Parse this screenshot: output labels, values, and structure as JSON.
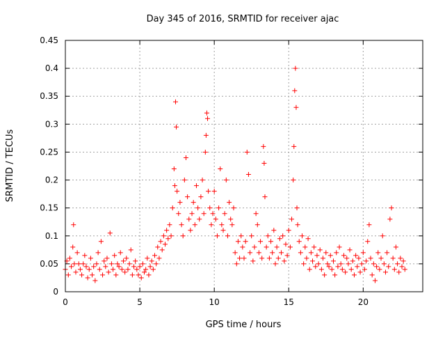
{
  "chart_data": {
    "type": "scatter",
    "title": "Day 345 of 2016, SRMTID for receiver ajac",
    "xlabel": "GPS time / hours",
    "ylabel": "SRMTID / TECUs",
    "xlim": [
      0,
      24
    ],
    "ylim": [
      0,
      0.45
    ],
    "xticks": [
      0,
      5,
      10,
      15,
      20
    ],
    "xtick_labels": [
      "0",
      "5",
      "10",
      "15",
      "20"
    ],
    "yticks": [
      0,
      0.05,
      0.1,
      0.15,
      0.2,
      0.25,
      0.3,
      0.35,
      0.4,
      0.45
    ],
    "ytick_labels": [
      "0",
      "0.05",
      "0.1",
      "0.15",
      "0.2",
      "0.25",
      "0.3",
      "0.35",
      "0.4",
      "0.45"
    ],
    "grid": true,
    "marker": "+",
    "color": "#ff0000",
    "series": [
      {
        "name": "SRMTID",
        "points": [
          [
            0.0,
            0.04
          ],
          [
            0.1,
            0.055
          ],
          [
            0.2,
            0.03
          ],
          [
            0.3,
            0.06
          ],
          [
            0.4,
            0.045
          ],
          [
            0.5,
            0.08
          ],
          [
            0.55,
            0.12
          ],
          [
            0.6,
            0.05
          ],
          [
            0.7,
            0.035
          ],
          [
            0.8,
            0.07
          ],
          [
            0.9,
            0.05
          ],
          [
            1.0,
            0.04
          ],
          [
            1.1,
            0.03
          ],
          [
            1.2,
            0.05
          ],
          [
            1.3,
            0.065
          ],
          [
            1.4,
            0.045
          ],
          [
            1.5,
            0.025
          ],
          [
            1.6,
            0.04
          ],
          [
            1.7,
            0.06
          ],
          [
            1.8,
            0.03
          ],
          [
            1.9,
            0.045
          ],
          [
            2.0,
            0.02
          ],
          [
            2.1,
            0.05
          ],
          [
            2.2,
            0.07
          ],
          [
            2.3,
            0.04
          ],
          [
            2.4,
            0.09
          ],
          [
            2.5,
            0.03
          ],
          [
            2.6,
            0.055
          ],
          [
            2.7,
            0.045
          ],
          [
            2.8,
            0.06
          ],
          [
            2.9,
            0.035
          ],
          [
            3.0,
            0.105
          ],
          [
            3.1,
            0.05
          ],
          [
            3.2,
            0.04
          ],
          [
            3.3,
            0.065
          ],
          [
            3.4,
            0.03
          ],
          [
            3.5,
            0.05
          ],
          [
            3.6,
            0.045
          ],
          [
            3.7,
            0.07
          ],
          [
            3.8,
            0.04
          ],
          [
            3.9,
            0.055
          ],
          [
            4.0,
            0.035
          ],
          [
            4.1,
            0.06
          ],
          [
            4.2,
            0.04
          ],
          [
            4.3,
            0.05
          ],
          [
            4.4,
            0.075
          ],
          [
            4.5,
            0.03
          ],
          [
            4.6,
            0.045
          ],
          [
            4.7,
            0.055
          ],
          [
            4.8,
            0.04
          ],
          [
            4.9,
            0.03
          ],
          [
            5.0,
            0.045
          ],
          [
            5.1,
            0.025
          ],
          [
            5.2,
            0.05
          ],
          [
            5.3,
            0.035
          ],
          [
            5.4,
            0.04
          ],
          [
            5.5,
            0.06
          ],
          [
            5.6,
            0.03
          ],
          [
            5.7,
            0.045
          ],
          [
            5.8,
            0.055
          ],
          [
            5.9,
            0.04
          ],
          [
            6.0,
            0.065
          ],
          [
            6.1,
            0.05
          ],
          [
            6.2,
            0.08
          ],
          [
            6.3,
            0.06
          ],
          [
            6.4,
            0.09
          ],
          [
            6.5,
            0.075
          ],
          [
            6.6,
            0.1
          ],
          [
            6.7,
            0.085
          ],
          [
            6.8,
            0.11
          ],
          [
            6.9,
            0.095
          ],
          [
            7.0,
            0.12
          ],
          [
            7.1,
            0.1
          ],
          [
            7.2,
            0.15
          ],
          [
            7.3,
            0.22
          ],
          [
            7.35,
            0.19
          ],
          [
            7.4,
            0.34
          ],
          [
            7.45,
            0.295
          ],
          [
            7.5,
            0.18
          ],
          [
            7.6,
            0.14
          ],
          [
            7.7,
            0.16
          ],
          [
            7.8,
            0.12
          ],
          [
            7.9,
            0.1
          ],
          [
            8.0,
            0.2
          ],
          [
            8.1,
            0.24
          ],
          [
            8.2,
            0.17
          ],
          [
            8.3,
            0.13
          ],
          [
            8.4,
            0.11
          ],
          [
            8.5,
            0.14
          ],
          [
            8.6,
            0.16
          ],
          [
            8.7,
            0.12
          ],
          [
            8.8,
            0.19
          ],
          [
            8.9,
            0.15
          ],
          [
            9.0,
            0.13
          ],
          [
            9.1,
            0.17
          ],
          [
            9.2,
            0.2
          ],
          [
            9.3,
            0.14
          ],
          [
            9.4,
            0.25
          ],
          [
            9.45,
            0.28
          ],
          [
            9.5,
            0.32
          ],
          [
            9.55,
            0.31
          ],
          [
            9.6,
            0.18
          ],
          [
            9.7,
            0.15
          ],
          [
            9.8,
            0.12
          ],
          [
            9.9,
            0.14
          ],
          [
            10.0,
            0.18
          ],
          [
            10.1,
            0.13
          ],
          [
            10.2,
            0.1
          ],
          [
            10.3,
            0.15
          ],
          [
            10.4,
            0.22
          ],
          [
            10.5,
            0.12
          ],
          [
            10.6,
            0.11
          ],
          [
            10.7,
            0.14
          ],
          [
            10.8,
            0.2
          ],
          [
            10.9,
            0.1
          ],
          [
            11.0,
            0.16
          ],
          [
            11.1,
            0.13
          ],
          [
            11.2,
            0.12
          ],
          [
            11.3,
            0.15
          ],
          [
            11.4,
            0.07
          ],
          [
            11.5,
            0.05
          ],
          [
            11.6,
            0.09
          ],
          [
            11.7,
            0.06
          ],
          [
            11.8,
            0.1
          ],
          [
            11.9,
            0.08
          ],
          [
            12.0,
            0.06
          ],
          [
            12.1,
            0.09
          ],
          [
            12.2,
            0.25
          ],
          [
            12.3,
            0.21
          ],
          [
            12.4,
            0.07
          ],
          [
            12.5,
            0.1
          ],
          [
            12.6,
            0.055
          ],
          [
            12.7,
            0.08
          ],
          [
            12.8,
            0.14
          ],
          [
            12.9,
            0.12
          ],
          [
            13.0,
            0.07
          ],
          [
            13.1,
            0.09
          ],
          [
            13.2,
            0.06
          ],
          [
            13.3,
            0.26
          ],
          [
            13.35,
            0.23
          ],
          [
            13.4,
            0.17
          ],
          [
            13.5,
            0.08
          ],
          [
            13.6,
            0.1
          ],
          [
            13.7,
            0.06
          ],
          [
            13.8,
            0.09
          ],
          [
            13.9,
            0.07
          ],
          [
            14.0,
            0.11
          ],
          [
            14.1,
            0.05
          ],
          [
            14.2,
            0.08
          ],
          [
            14.3,
            0.06
          ],
          [
            14.4,
            0.095
          ],
          [
            14.5,
            0.07
          ],
          [
            14.6,
            0.1
          ],
          [
            14.7,
            0.055
          ],
          [
            14.8,
            0.085
          ],
          [
            14.9,
            0.065
          ],
          [
            15.0,
            0.11
          ],
          [
            15.1,
            0.08
          ],
          [
            15.2,
            0.13
          ],
          [
            15.3,
            0.2
          ],
          [
            15.35,
            0.26
          ],
          [
            15.4,
            0.36
          ],
          [
            15.45,
            0.4
          ],
          [
            15.5,
            0.33
          ],
          [
            15.55,
            0.15
          ],
          [
            15.6,
            0.12
          ],
          [
            15.7,
            0.09
          ],
          [
            15.8,
            0.07
          ],
          [
            15.9,
            0.1
          ],
          [
            16.0,
            0.05
          ],
          [
            16.1,
            0.08
          ],
          [
            16.2,
            0.06
          ],
          [
            16.3,
            0.095
          ],
          [
            16.4,
            0.04
          ],
          [
            16.5,
            0.07
          ],
          [
            16.6,
            0.055
          ],
          [
            16.7,
            0.08
          ],
          [
            16.8,
            0.045
          ],
          [
            16.9,
            0.065
          ],
          [
            17.0,
            0.05
          ],
          [
            17.1,
            0.075
          ],
          [
            17.2,
            0.04
          ],
          [
            17.3,
            0.06
          ],
          [
            17.4,
            0.03
          ],
          [
            17.5,
            0.07
          ],
          [
            17.6,
            0.05
          ],
          [
            17.7,
            0.045
          ],
          [
            17.8,
            0.065
          ],
          [
            17.9,
            0.04
          ],
          [
            18.0,
            0.055
          ],
          [
            18.1,
            0.03
          ],
          [
            18.2,
            0.07
          ],
          [
            18.3,
            0.045
          ],
          [
            18.4,
            0.08
          ],
          [
            18.5,
            0.05
          ],
          [
            18.6,
            0.04
          ],
          [
            18.7,
            0.065
          ],
          [
            18.8,
            0.035
          ],
          [
            18.9,
            0.06
          ],
          [
            19.0,
            0.05
          ],
          [
            19.1,
            0.075
          ],
          [
            19.2,
            0.04
          ],
          [
            19.3,
            0.055
          ],
          [
            19.4,
            0.03
          ],
          [
            19.5,
            0.065
          ],
          [
            19.6,
            0.045
          ],
          [
            19.7,
            0.06
          ],
          [
            19.8,
            0.035
          ],
          [
            19.9,
            0.05
          ],
          [
            20.0,
            0.07
          ],
          [
            20.1,
            0.04
          ],
          [
            20.2,
            0.055
          ],
          [
            20.3,
            0.09
          ],
          [
            20.4,
            0.12
          ],
          [
            20.5,
            0.06
          ],
          [
            20.6,
            0.03
          ],
          [
            20.7,
            0.05
          ],
          [
            20.8,
            0.02
          ],
          [
            20.9,
            0.045
          ],
          [
            21.0,
            0.07
          ],
          [
            21.1,
            0.04
          ],
          [
            21.2,
            0.06
          ],
          [
            21.3,
            0.1
          ],
          [
            21.4,
            0.05
          ],
          [
            21.5,
            0.035
          ],
          [
            21.6,
            0.07
          ],
          [
            21.7,
            0.045
          ],
          [
            21.8,
            0.13
          ],
          [
            21.9,
            0.15
          ],
          [
            22.0,
            0.06
          ],
          [
            22.1,
            0.04
          ],
          [
            22.2,
            0.08
          ],
          [
            22.3,
            0.05
          ],
          [
            22.4,
            0.035
          ],
          [
            22.5,
            0.06
          ],
          [
            22.6,
            0.045
          ],
          [
            22.7,
            0.055
          ],
          [
            22.8,
            0.04
          ]
        ]
      }
    ]
  }
}
